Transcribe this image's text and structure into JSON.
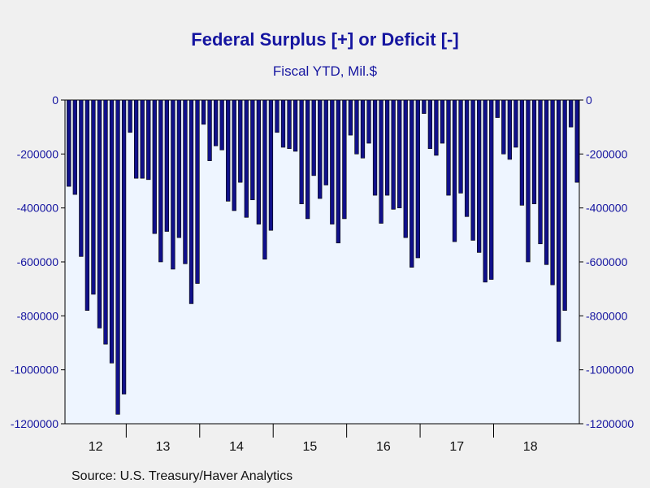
{
  "chart_data": {
    "type": "bar",
    "title": "Federal Surplus [+] or Deficit [-]",
    "subtitle": "Fiscal YTD, Mil.$",
    "source": "Source:  U.S. Treasury/Haver Analytics",
    "ylim": [
      -1200000,
      0
    ],
    "y_ticks": [
      "0",
      "-200000",
      "-400000",
      "-600000",
      "-800000",
      "-1000000",
      "-1200000"
    ],
    "y_tick_values": [
      0,
      -200000,
      -400000,
      -600000,
      -800000,
      -1000000,
      -1200000
    ],
    "year_labels": [
      "12",
      "13",
      "14",
      "15",
      "16",
      "17",
      "18"
    ],
    "colors": {
      "bar": "#10108a",
      "bar_edge": "#000000",
      "plot_bg": "#eef5ff",
      "axis": "#1515a0"
    },
    "values": [
      -320000,
      -350000,
      -580000,
      -780000,
      -720000,
      -845000,
      -905000,
      -975000,
      -1165000,
      -1090000,
      -120000,
      -290000,
      -290000,
      -295000,
      -495000,
      -600000,
      -487000,
      -627000,
      -510000,
      -607000,
      -755000,
      -680000,
      -90000,
      -225000,
      -170000,
      -185000,
      -375000,
      -410000,
      -305000,
      -435000,
      -370000,
      -460000,
      -590000,
      -483000,
      -120000,
      -175000,
      -180000,
      -190000,
      -385000,
      -440000,
      -280000,
      -365000,
      -315000,
      -460000,
      -530000,
      -440000,
      -130000,
      -200000,
      -215000,
      -160000,
      -353000,
      -457000,
      -353000,
      -405000,
      -400000,
      -510000,
      -620000,
      -585000,
      -50000,
      -180000,
      -205000,
      -160000,
      -353000,
      -525000,
      -345000,
      -432000,
      -520000,
      -565000,
      -675000,
      -665000,
      -65000,
      -200000,
      -220000,
      -175000,
      -390000,
      -600000,
      -385000,
      -533000,
      -610000,
      -685000,
      -895000,
      -780000,
      -100000,
      -305000
    ]
  }
}
